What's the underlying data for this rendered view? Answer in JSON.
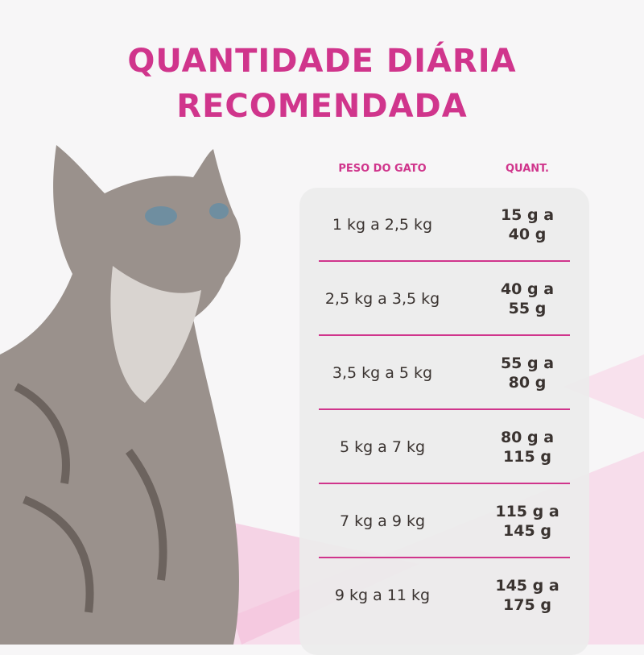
{
  "title": {
    "line1": "QUANTIDADE DIÁRIA",
    "line2": "RECOMENDADA"
  },
  "colors": {
    "accent": "#d0358c",
    "text": "#3a3330",
    "panel": "#ecebec"
  },
  "table": {
    "headers": {
      "weight": "PESO DO GATO",
      "quantity": "QUANT."
    },
    "rows": [
      {
        "weight": "1 kg a 2,5 kg",
        "quantity_line1": "15 g a",
        "quantity_line2": "40 g"
      },
      {
        "weight": "2,5 kg a 3,5 kg",
        "quantity_line1": "40 g a",
        "quantity_line2": "55 g"
      },
      {
        "weight": "3,5 kg a 5 kg",
        "quantity_line1": "55 g a",
        "quantity_line2": "80 g"
      },
      {
        "weight": "5 kg a 7 kg",
        "quantity_line1": "80 g a",
        "quantity_line2": "115 g"
      },
      {
        "weight": "7 kg a 9 kg",
        "quantity_line1": "115 g a",
        "quantity_line2": "145 g"
      },
      {
        "weight": "9 kg a 11 kg",
        "quantity_line1": "145 g a",
        "quantity_line2": "175 g"
      }
    ]
  }
}
